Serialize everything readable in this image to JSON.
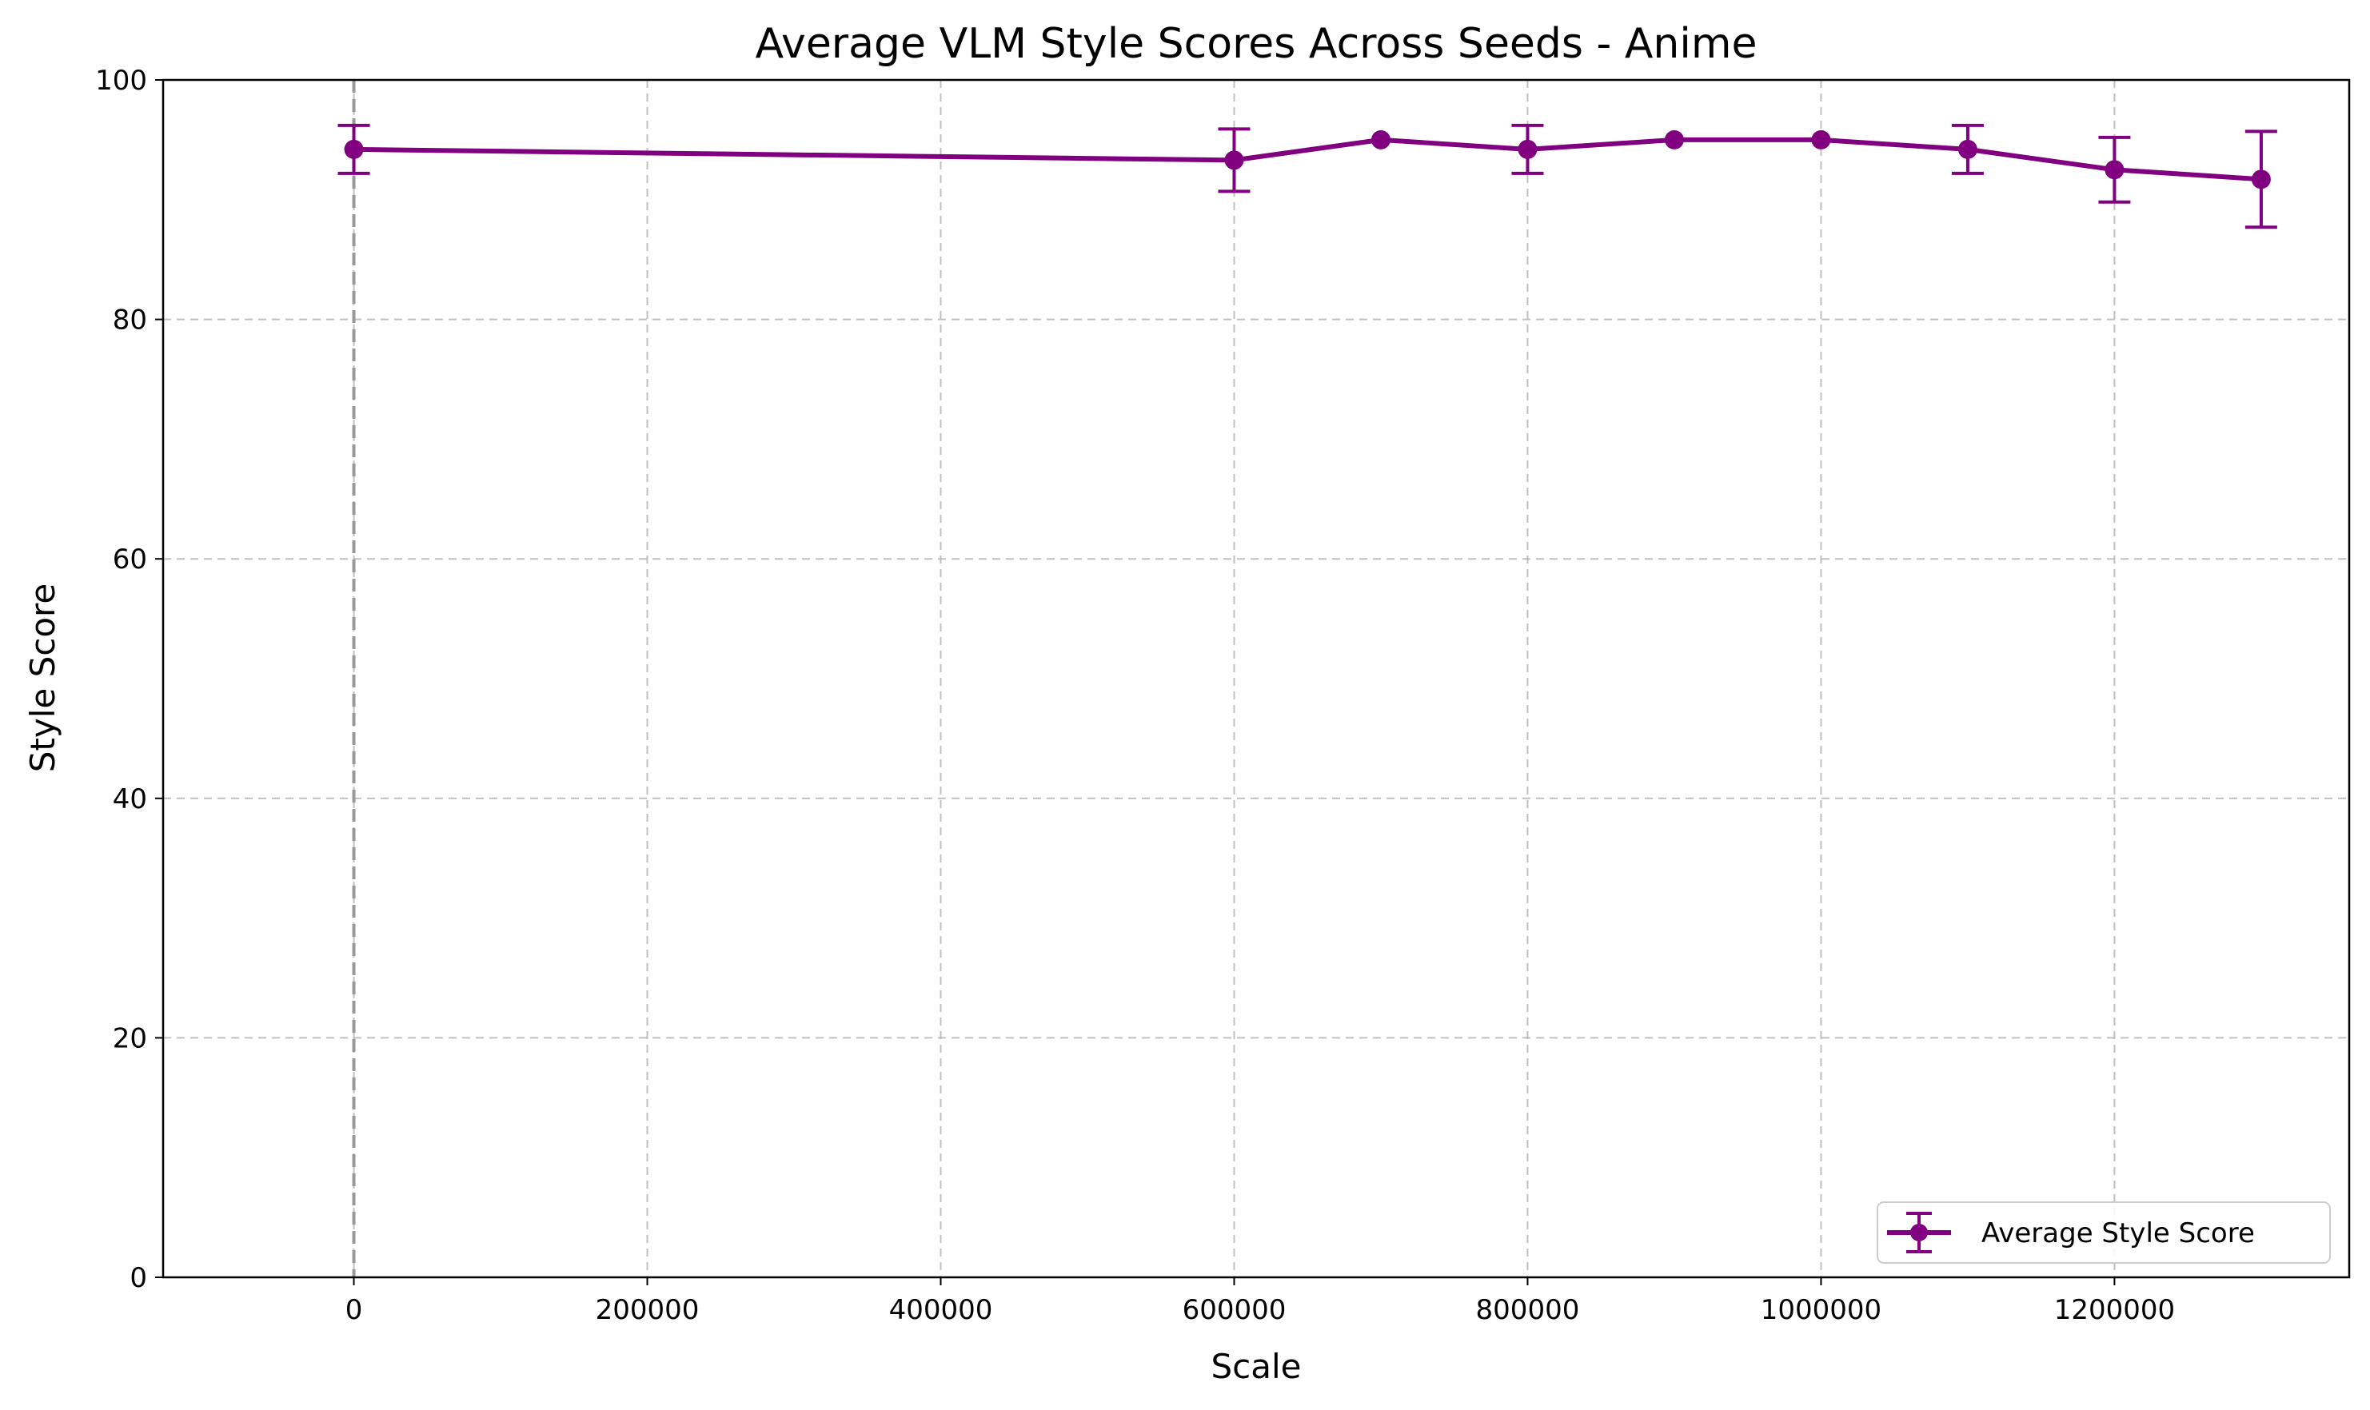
{
  "chart_data": {
    "type": "line",
    "title": "Average VLM Style Scores Across Seeds - Anime",
    "xlabel": "Scale",
    "ylabel": "Style Score",
    "xlim": [
      -130000,
      1360000
    ],
    "ylim": [
      0,
      100
    ],
    "x_ticks": [
      0,
      200000,
      400000,
      600000,
      800000,
      1000000,
      1200000
    ],
    "x_tick_labels": [
      "0",
      "200000",
      "400000",
      "600000",
      "800000",
      "1000000",
      "1200000"
    ],
    "y_ticks": [
      0,
      20,
      40,
      60,
      80,
      100
    ],
    "y_tick_labels": [
      "0",
      "20",
      "40",
      "60",
      "80",
      "100"
    ],
    "grid": true,
    "grid_style": "dashed",
    "reference_vline_x": 0,
    "legend_position": "lower-right",
    "series": [
      {
        "name": "Average Style Score",
        "color": "#800080",
        "x": [
          0,
          600000,
          700000,
          800000,
          900000,
          1000000,
          1100000,
          1200000,
          1300000
        ],
        "y": [
          94.2,
          93.3,
          95.0,
          94.2,
          95.0,
          95.0,
          94.2,
          92.5,
          91.7
        ],
        "yerr": [
          2.0,
          2.6,
          0,
          2.0,
          0,
          0,
          2.0,
          2.7,
          4.0
        ]
      }
    ]
  }
}
